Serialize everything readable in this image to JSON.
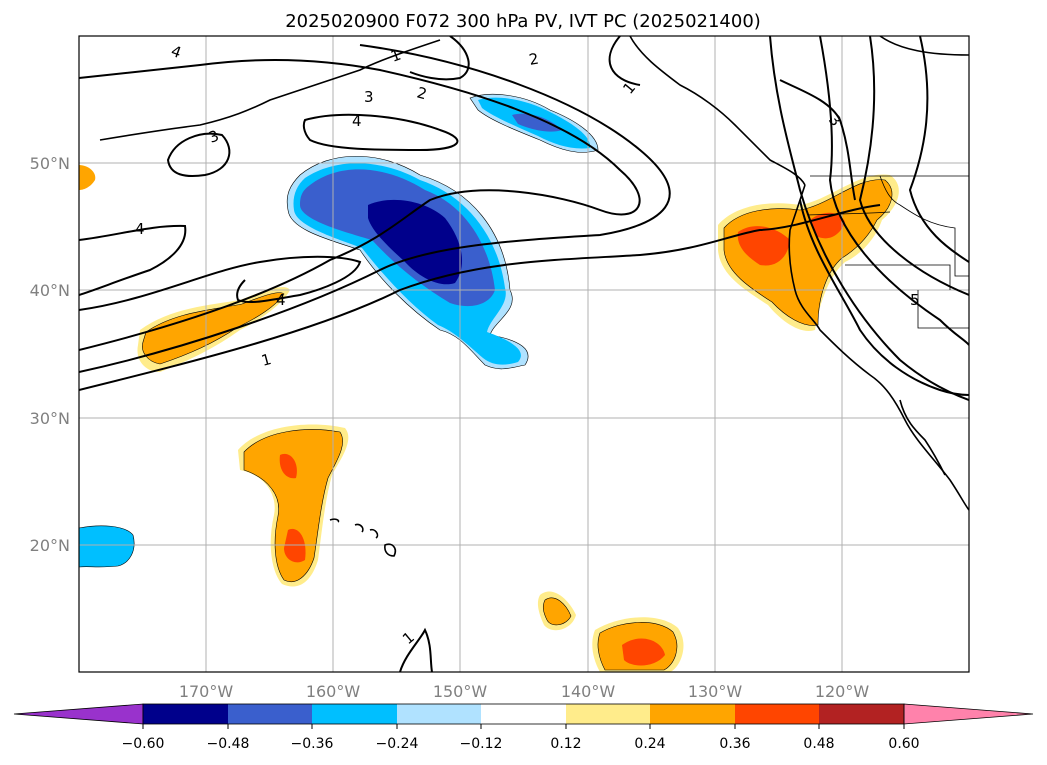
{
  "title": "2025020900 F072 300 hPa PV, IVT PC (2025021400)",
  "map": {
    "lat_labels": [
      "50°N",
      "40°N",
      "30°N",
      "20°N"
    ],
    "lon_labels": [
      "170°W",
      "160°W",
      "150°W",
      "140°W",
      "130°W",
      "120°W"
    ],
    "gridlines": true,
    "coastline_color": "#000000"
  },
  "contour_labels": [
    "4",
    "1",
    "2",
    "3",
    "2",
    "3",
    "4",
    "4",
    "4",
    "1",
    "1",
    "3",
    "5",
    "2"
  ],
  "colorbar": {
    "extend": "both",
    "ticks": [
      "−0.60",
      "−0.48",
      "−0.36",
      "−0.24",
      "−0.12",
      "0.12",
      "0.24",
      "0.36",
      "0.48",
      "0.60"
    ],
    "colors": [
      "#9932cc",
      "#00008b",
      "#3a5fcd",
      "#00bfff",
      "#b0e2ff",
      "#ffffff",
      "#ffec8b",
      "#ffa500",
      "#ff4500",
      "#b22222",
      "#ff82ab"
    ]
  }
}
